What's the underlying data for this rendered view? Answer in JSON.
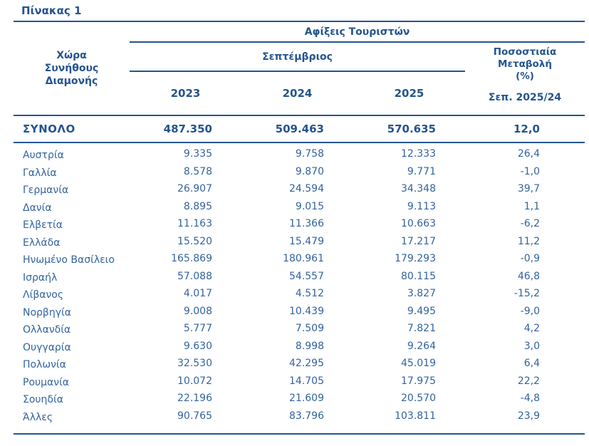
{
  "title": "Πίνακας 1",
  "colors": {
    "header_text": "#24548F",
    "data_text": "#33639E",
    "rule": "#24548F"
  },
  "table": {
    "country_column_header": "Χώρα\nΣυνήθους\nΔιαμονής",
    "arrivals_header": "Αφίξεις Τουριστών",
    "month_header": "Σεπτέμβριος",
    "year_headers": [
      "2023",
      "2024",
      "2025"
    ],
    "pct_change_header": "Ποσοστιαία\nΜεταβολή\n(%)",
    "pct_change_period": "Σεπ. 2025/24",
    "total_row": {
      "label": "ΣΥΝΟΛΟ",
      "values": [
        "487.350",
        "509.463",
        "570.635",
        "12,0"
      ]
    },
    "rows": [
      {
        "country": "Αυστρία",
        "values": [
          "9.335",
          "9.758",
          "12.333",
          "26,4"
        ]
      },
      {
        "country": "Γαλλία",
        "values": [
          "8.578",
          "9.870",
          "9.771",
          "-1,0"
        ]
      },
      {
        "country": "Γερμανία",
        "values": [
          "26.907",
          "24.594",
          "34.348",
          "39,7"
        ]
      },
      {
        "country": "Δανία",
        "values": [
          "8.895",
          "9.015",
          "9.113",
          "1,1"
        ]
      },
      {
        "country": "Ελβετία",
        "values": [
          "11.163",
          "11.366",
          "10.663",
          "-6,2"
        ]
      },
      {
        "country": "Ελλάδα",
        "values": [
          "15.520",
          "15.479",
          "17.217",
          "11,2"
        ]
      },
      {
        "country": "Ηνωμένο Βασίλειο",
        "values": [
          "165.869",
          "180.961",
          "179.293",
          "-0,9"
        ]
      },
      {
        "country": "Ισραήλ",
        "values": [
          "57.088",
          "54.557",
          "80.115",
          "46,8"
        ]
      },
      {
        "country": "Λίβανος",
        "values": [
          "4.017",
          "4.512",
          "3.827",
          "-15,2"
        ]
      },
      {
        "country": "Νορβηγία",
        "values": [
          "9.008",
          "10.439",
          "9.495",
          "-9,0"
        ]
      },
      {
        "country": "Ολλανδία",
        "values": [
          "5.777",
          "7.509",
          "7.821",
          "4,2"
        ]
      },
      {
        "country": "Ουγγαρία",
        "values": [
          "9.630",
          "8.998",
          "9.264",
          "3,0"
        ]
      },
      {
        "country": "Πολωνία",
        "values": [
          "32.530",
          "42.295",
          "45.019",
          "6,4"
        ]
      },
      {
        "country": "Ρουμανία",
        "values": [
          "10.072",
          "14.705",
          "17.975",
          "22,2"
        ]
      },
      {
        "country": "Σουηδία",
        "values": [
          "22.196",
          "21.609",
          "20.570",
          "-4,8"
        ]
      },
      {
        "country": "Άλλες",
        "values": [
          "90.765",
          "83.796",
          "103.811",
          "23,9"
        ]
      }
    ]
  }
}
